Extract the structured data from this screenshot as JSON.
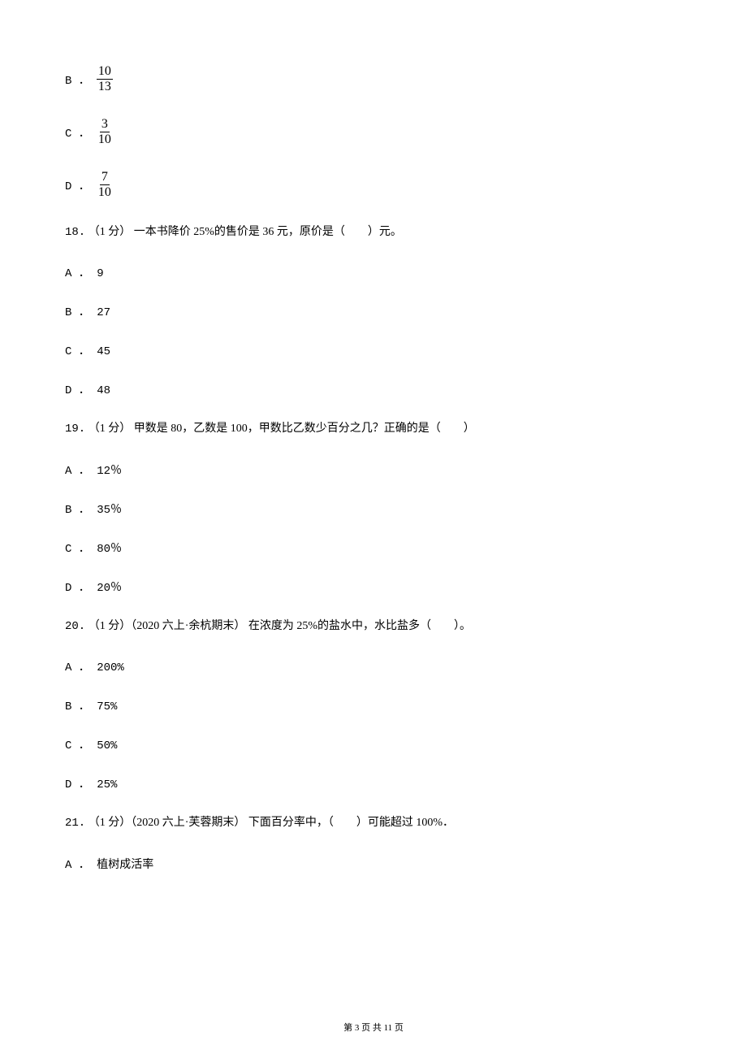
{
  "fraction_options": [
    {
      "label": "B ．",
      "num": "10",
      "den": "13"
    },
    {
      "label": "C ．",
      "num": "3",
      "den": "10"
    },
    {
      "label": "D ．",
      "num": "7",
      "den": "10"
    }
  ],
  "questions": [
    {
      "num": "18.",
      "meta": "（1 分）",
      "stem": " 一本书降价 25%的售价是 36 元，原价是（　　）元。",
      "options": [
        {
          "label": "A ．",
          "value": "9"
        },
        {
          "label": "B ．",
          "value": "27"
        },
        {
          "label": "C ．",
          "value": "45"
        },
        {
          "label": "D ．",
          "value": "48"
        }
      ]
    },
    {
      "num": "19.",
      "meta": "（1 分）",
      "stem": " 甲数是 80，乙数是 100，甲数比乙数少百分之几？正确的是（　　）",
      "options": [
        {
          "label": "A ．",
          "value": "12％"
        },
        {
          "label": "B ．",
          "value": "35％"
        },
        {
          "label": "C ．",
          "value": "80％"
        },
        {
          "label": "D ．",
          "value": "20％"
        }
      ]
    },
    {
      "num": "20.",
      "meta": "（1 分）（2020 六上·余杭期末）",
      "stem": "在浓度为 25%的盐水中，水比盐多（　　）。",
      "options": [
        {
          "label": "A ．",
          "value": "200%"
        },
        {
          "label": "B ．",
          "value": "75%"
        },
        {
          "label": "C ．",
          "value": "50%"
        },
        {
          "label": "D ．",
          "value": "25%"
        }
      ]
    },
    {
      "num": "21.",
      "meta": "（1 分）（2020 六上·芙蓉期末）",
      "stem": "下面百分率中，（　　）可能超过 100%．",
      "options": [
        {
          "label": "A ．",
          "value": "植树成活率"
        }
      ]
    }
  ],
  "footer": "第 3 页 共 11 页"
}
